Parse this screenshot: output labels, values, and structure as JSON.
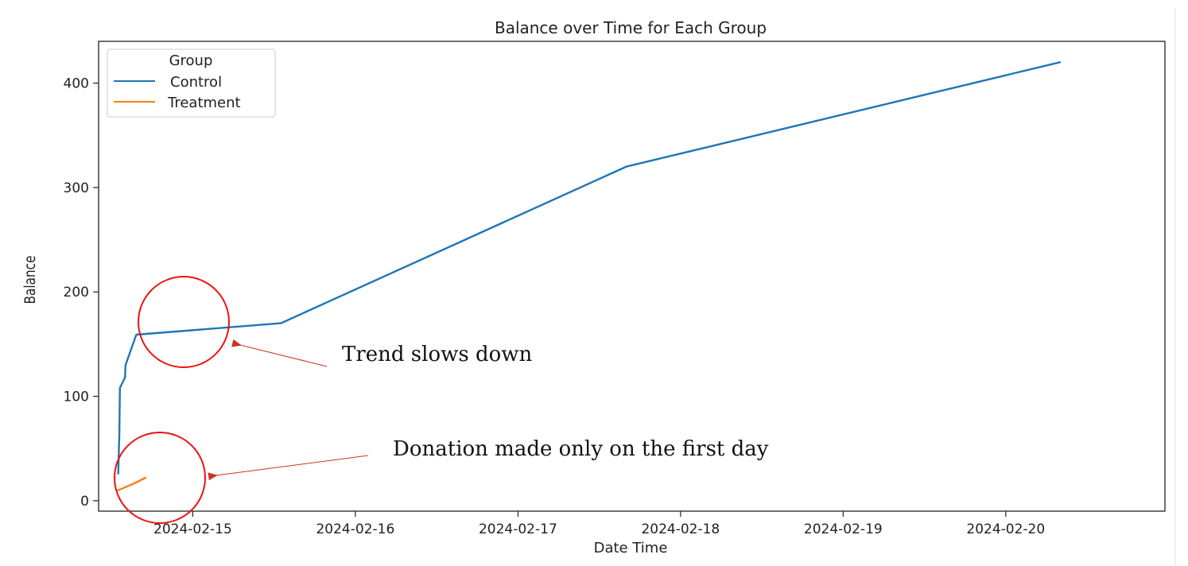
{
  "chart_data": {
    "type": "line",
    "title": "Balance over Time for Each Group",
    "xlabel": "Date Time",
    "ylabel": "Balance",
    "x_ticks": [
      "2024-02-15",
      "2024-02-16",
      "2024-02-17",
      "2024-02-18",
      "2024-02-19",
      "2024-02-20"
    ],
    "y_ticks": [
      0,
      100,
      200,
      300,
      400
    ],
    "xlim": [
      "2024-02-14 10:06",
      "2024-02-20 23:30"
    ],
    "ylim": [
      -10,
      440
    ],
    "legend": {
      "title": "Group",
      "position": "top-left"
    },
    "grid": false,
    "series": [
      {
        "name": "Control",
        "color": "#1f77b4",
        "points": [
          {
            "x": "2024-02-14 13:00",
            "y": 26
          },
          {
            "x": "2024-02-14 13:10",
            "y": 65
          },
          {
            "x": "2024-02-14 13:15",
            "y": 108
          },
          {
            "x": "2024-02-14 14:00",
            "y": 118
          },
          {
            "x": "2024-02-14 14:05",
            "y": 130
          },
          {
            "x": "2024-02-14 15:40",
            "y": 159
          },
          {
            "x": "2024-02-15 13:00",
            "y": 170
          },
          {
            "x": "2024-02-17 16:00",
            "y": 320
          },
          {
            "x": "2024-02-20 08:00",
            "y": 420
          }
        ]
      },
      {
        "name": "Treatment",
        "color": "#ff7f0e",
        "points": [
          {
            "x": "2024-02-14 13:00",
            "y": 10
          },
          {
            "x": "2024-02-14 15:30",
            "y": 17
          },
          {
            "x": "2024-02-14 17:00",
            "y": 22
          }
        ]
      }
    ],
    "annotations": [
      {
        "text": "Trend slows down",
        "target": "Control plateau near 2024-02-14 15:40, Balance ~160",
        "color": "#cc3322"
      },
      {
        "text": "Donation made only on the first day",
        "target": "Treatment series on 2024-02-14",
        "color": "#cc3322"
      }
    ]
  }
}
